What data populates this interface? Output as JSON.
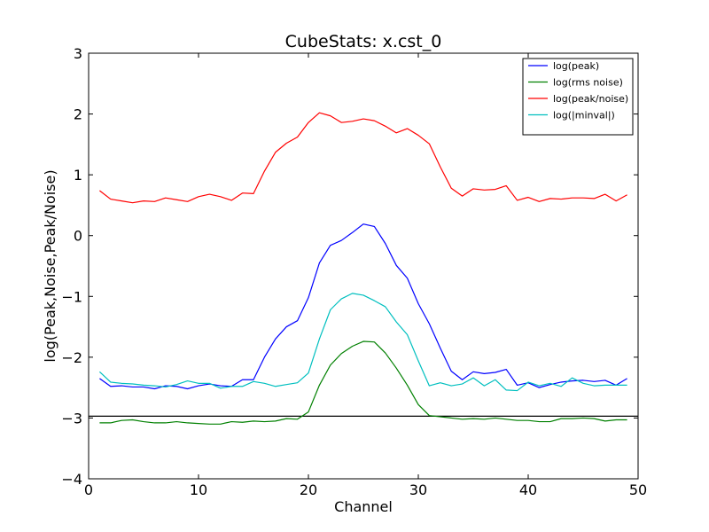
{
  "chart_data": {
    "type": "line",
    "title": "CubeStats: x.cst_0",
    "xlabel": "Channel",
    "ylabel": "log(Peak,Noise,Peak/Noise)",
    "xlim": [
      0,
      50
    ],
    "ylim": [
      -4,
      3
    ],
    "xticks": [
      0,
      10,
      20,
      30,
      40,
      50
    ],
    "yticks": [
      -4,
      -3,
      -2,
      -1,
      0,
      1,
      2,
      3
    ],
    "grid": false,
    "legend_position": "top-right",
    "x": [
      1,
      2,
      3,
      4,
      5,
      6,
      7,
      8,
      9,
      10,
      11,
      12,
      13,
      14,
      15,
      16,
      17,
      18,
      19,
      20,
      21,
      22,
      23,
      24,
      25,
      26,
      27,
      28,
      29,
      30,
      31,
      32,
      33,
      34,
      35,
      36,
      37,
      38,
      39,
      40,
      41,
      42,
      43,
      44,
      45,
      46,
      47,
      48,
      49
    ],
    "series": [
      {
        "name": "log(peak)",
        "color": "#0000ff",
        "values": [
          -2.35,
          -2.48,
          -2.47,
          -2.49,
          -2.49,
          -2.52,
          -2.47,
          -2.48,
          -2.52,
          -2.47,
          -2.44,
          -2.47,
          -2.48,
          -2.37,
          -2.37,
          -2.0,
          -1.7,
          -1.5,
          -1.4,
          -1.02,
          -0.45,
          -0.16,
          -0.08,
          0.05,
          0.19,
          0.15,
          -0.13,
          -0.49,
          -0.7,
          -1.12,
          -1.45,
          -1.85,
          -2.23,
          -2.37,
          -2.24,
          -2.27,
          -2.25,
          -2.2,
          -2.46,
          -2.42,
          -2.5,
          -2.45,
          -2.41,
          -2.39,
          -2.38,
          -2.4,
          -2.38,
          -2.46,
          -2.35
        ]
      },
      {
        "name": "log(rms noise)",
        "color": "#008000",
        "values": [
          -3.08,
          -3.08,
          -3.04,
          -3.03,
          -3.06,
          -3.08,
          -3.08,
          -3.06,
          -3.08,
          -3.09,
          -3.1,
          -3.1,
          -3.06,
          -3.07,
          -3.05,
          -3.06,
          -3.05,
          -3.01,
          -3.02,
          -2.9,
          -2.46,
          -2.13,
          -1.94,
          -1.82,
          -1.74,
          -1.75,
          -1.93,
          -2.18,
          -2.46,
          -2.78,
          -2.96,
          -2.98,
          -3.0,
          -3.02,
          -3.01,
          -3.02,
          -3.0,
          -3.02,
          -3.04,
          -3.04,
          -3.06,
          -3.06,
          -3.01,
          -3.01,
          -3.0,
          -3.01,
          -3.05,
          -3.03,
          -3.03
        ]
      },
      {
        "name": "log(peak/noise)",
        "color": "#ff0000",
        "values": [
          0.74,
          0.6,
          0.57,
          0.54,
          0.57,
          0.56,
          0.62,
          0.59,
          0.56,
          0.64,
          0.68,
          0.64,
          0.58,
          0.7,
          0.69,
          1.06,
          1.37,
          1.52,
          1.62,
          1.86,
          2.02,
          1.97,
          1.86,
          1.88,
          1.92,
          1.89,
          1.8,
          1.69,
          1.76,
          1.65,
          1.51,
          1.13,
          0.78,
          0.65,
          0.77,
          0.75,
          0.76,
          0.82,
          0.58,
          0.63,
          0.56,
          0.61,
          0.6,
          0.62,
          0.62,
          0.61,
          0.68,
          0.57,
          0.67
        ]
      },
      {
        "name": "log(|minval|)",
        "color": "#00bfbf",
        "values": [
          -2.24,
          -2.41,
          -2.43,
          -2.44,
          -2.46,
          -2.47,
          -2.49,
          -2.45,
          -2.39,
          -2.43,
          -2.43,
          -2.51,
          -2.48,
          -2.48,
          -2.4,
          -2.43,
          -2.48,
          -2.45,
          -2.42,
          -2.26,
          -1.7,
          -1.22,
          -1.04,
          -0.95,
          -0.98,
          -1.07,
          -1.17,
          -1.42,
          -1.63,
          -2.06,
          -2.47,
          -2.42,
          -2.47,
          -2.44,
          -2.34,
          -2.47,
          -2.37,
          -2.54,
          -2.55,
          -2.41,
          -2.47,
          -2.43,
          -2.48,
          -2.34,
          -2.43,
          -2.47,
          -2.46,
          -2.46,
          -2.46
        ]
      }
    ],
    "annotations": [
      {
        "type": "hline",
        "y": -2.97,
        "color": "#000000"
      }
    ]
  }
}
